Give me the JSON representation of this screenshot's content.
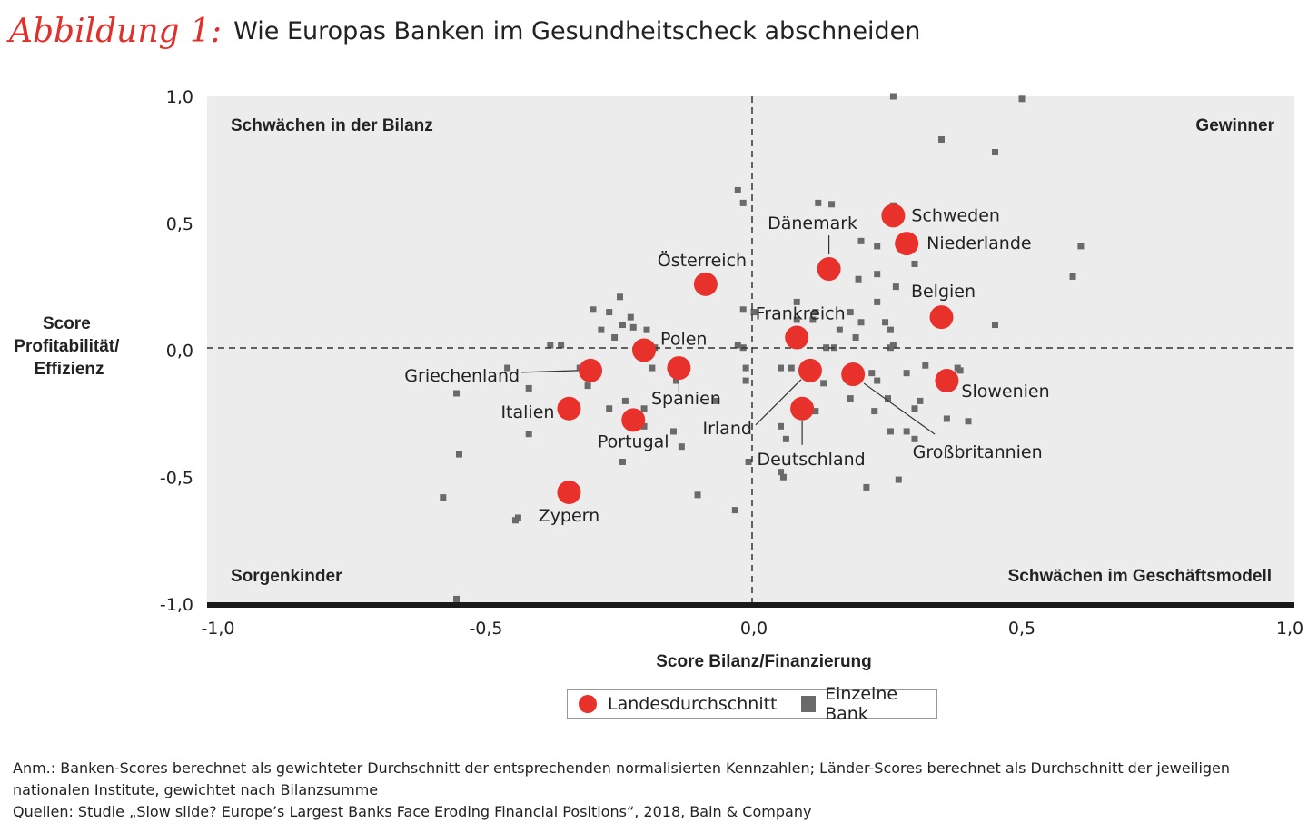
{
  "header": {
    "figure_label": "Abbildung 1:",
    "title": "Wie Europas Banken im Gesundheitscheck abschneiden"
  },
  "colors": {
    "country": "#e8312a",
    "bank": "#6a6a6a",
    "plot_bg": "#ececec",
    "axis_bar": "#1a1a1a",
    "label_accent": "#e0302b"
  },
  "chart_data": {
    "type": "scatter",
    "xlabel": "Score Bilanz/Finanzierung",
    "ylabel": "Score Profitabilität/ Effizienz",
    "xlim": [
      -1.0,
      1.0
    ],
    "ylim": [
      -1.0,
      1.0
    ],
    "x_ticks": [
      {
        "value": -1.0,
        "label": "-1,0"
      },
      {
        "value": -0.5,
        "label": "-0,5"
      },
      {
        "value": 0.0,
        "label": "0,0"
      },
      {
        "value": 0.5,
        "label": "0,5"
      },
      {
        "value": 1.0,
        "label": "1,0"
      }
    ],
    "y_ticks": [
      {
        "value": 1.0,
        "label": "1,0"
      },
      {
        "value": 0.5,
        "label": "0,5"
      },
      {
        "value": 0.0,
        "label": "0,0"
      },
      {
        "value": -0.5,
        "label": "-0,5"
      },
      {
        "value": -1.0,
        "label": "-1,0"
      }
    ],
    "quadrant_labels": {
      "top_left": "Schwächen in der Bilanz",
      "top_right": "Gewinner",
      "bottom_left": "Sorgenkinder",
      "bottom_right": "Schwächen im Geschäftsmodell"
    },
    "legend": {
      "country": "Landesdurchschnitt",
      "bank": "Einzelne Bank",
      "position": "bottom-center"
    },
    "countries": [
      {
        "name": "Schweden",
        "x": 0.26,
        "y": 0.53
      },
      {
        "name": "Niederlande",
        "x": 0.285,
        "y": 0.42
      },
      {
        "name": "Dänemark",
        "x": 0.14,
        "y": 0.32
      },
      {
        "name": "Belgien",
        "x": 0.35,
        "y": 0.13
      },
      {
        "name": "Österreich",
        "x": -0.09,
        "y": 0.26
      },
      {
        "name": "Frankreich",
        "x": 0.08,
        "y": 0.05
      },
      {
        "name": "Polen",
        "x": -0.205,
        "y": 0.0
      },
      {
        "name": "Griechenland",
        "x": -0.305,
        "y": -0.08
      },
      {
        "name": "Spanien",
        "x": -0.14,
        "y": -0.07
      },
      {
        "name": "Irland",
        "x": 0.105,
        "y": -0.08
      },
      {
        "name": "Großbritannien",
        "x": 0.185,
        "y": -0.095
      },
      {
        "name": "Slowenien",
        "x": 0.36,
        "y": -0.12
      },
      {
        "name": "Italien",
        "x": -0.345,
        "y": -0.23
      },
      {
        "name": "Deutschland",
        "x": 0.09,
        "y": -0.23
      },
      {
        "name": "Portugal",
        "x": -0.225,
        "y": -0.275
      },
      {
        "name": "Zypern",
        "x": -0.345,
        "y": -0.56
      }
    ],
    "banks": [
      [
        0.26,
        1.0
      ],
      [
        0.5,
        0.99
      ],
      [
        0.35,
        0.83
      ],
      [
        0.45,
        0.78
      ],
      [
        -0.03,
        0.63
      ],
      [
        -0.02,
        0.58
      ],
      [
        0.12,
        0.58
      ],
      [
        0.145,
        0.575
      ],
      [
        0.26,
        0.57
      ],
      [
        0.2,
        0.43
      ],
      [
        0.23,
        0.41
      ],
      [
        0.61,
        0.41
      ],
      [
        0.3,
        0.34
      ],
      [
        0.23,
        0.3
      ],
      [
        0.595,
        0.29
      ],
      [
        0.195,
        0.28
      ],
      [
        0.265,
        0.25
      ],
      [
        -0.25,
        0.21
      ],
      [
        0.08,
        0.19
      ],
      [
        0.23,
        0.19
      ],
      [
        -0.27,
        0.15
      ],
      [
        -0.3,
        0.16
      ],
      [
        -0.02,
        0.16
      ],
      [
        -0.0,
        0.15
      ],
      [
        0.115,
        0.15
      ],
      [
        0.18,
        0.15
      ],
      [
        0.08,
        0.12
      ],
      [
        0.11,
        0.12
      ],
      [
        0.2,
        0.11
      ],
      [
        0.245,
        0.11
      ],
      [
        -0.23,
        0.13
      ],
      [
        -0.245,
        0.1
      ],
      [
        -0.225,
        0.09
      ],
      [
        0.45,
        0.1
      ],
      [
        -0.285,
        0.08
      ],
      [
        -0.2,
        0.08
      ],
      [
        0.16,
        0.08
      ],
      [
        0.255,
        0.08
      ],
      [
        -0.38,
        0.02
      ],
      [
        -0.36,
        0.02
      ],
      [
        -0.26,
        0.05
      ],
      [
        0.19,
        0.05
      ],
      [
        -0.185,
        0.01
      ],
      [
        -0.03,
        0.02
      ],
      [
        -0.02,
        0.01
      ],
      [
        0.135,
        0.01
      ],
      [
        0.15,
        0.01
      ],
      [
        0.255,
        0.01
      ],
      [
        0.26,
        0.02
      ],
      [
        -0.46,
        -0.07
      ],
      [
        -0.325,
        -0.07
      ],
      [
        -0.19,
        -0.07
      ],
      [
        0.05,
        -0.07
      ],
      [
        0.07,
        -0.07
      ],
      [
        -0.015,
        -0.07
      ],
      [
        0.185,
        -0.09
      ],
      [
        0.22,
        -0.09
      ],
      [
        0.285,
        -0.09
      ],
      [
        0.385,
        -0.08
      ],
      [
        0.32,
        -0.06
      ],
      [
        0.38,
        -0.07
      ],
      [
        -0.015,
        -0.12
      ],
      [
        0.23,
        -0.12
      ],
      [
        0.13,
        -0.13
      ],
      [
        -0.145,
        -0.12
      ],
      [
        -0.42,
        -0.15
      ],
      [
        -0.31,
        -0.14
      ],
      [
        -0.07,
        -0.2
      ],
      [
        0.18,
        -0.19
      ],
      [
        0.25,
        -0.19
      ],
      [
        0.31,
        -0.2
      ],
      [
        -0.555,
        -0.17
      ],
      [
        -0.24,
        -0.2
      ],
      [
        -0.205,
        -0.23
      ],
      [
        -0.27,
        -0.23
      ],
      [
        0.115,
        -0.24
      ],
      [
        0.225,
        -0.24
      ],
      [
        0.3,
        -0.23
      ],
      [
        -0.42,
        -0.33
      ],
      [
        -0.205,
        -0.3
      ],
      [
        0.05,
        -0.3
      ],
      [
        0.36,
        -0.27
      ],
      [
        0.4,
        -0.28
      ],
      [
        0.06,
        -0.35
      ],
      [
        0.255,
        -0.32
      ],
      [
        0.285,
        -0.32
      ],
      [
        -0.15,
        -0.32
      ],
      [
        -0.135,
        -0.38
      ],
      [
        0.3,
        -0.35
      ],
      [
        -0.55,
        -0.41
      ],
      [
        -0.245,
        -0.44
      ],
      [
        -0.01,
        -0.44
      ],
      [
        0.05,
        -0.48
      ],
      [
        0.055,
        -0.5
      ],
      [
        0.21,
        -0.54
      ],
      [
        0.27,
        -0.51
      ],
      [
        -0.58,
        -0.58
      ],
      [
        -0.105,
        -0.57
      ],
      [
        -0.445,
        -0.67
      ],
      [
        -0.44,
        -0.66
      ],
      [
        -0.035,
        -0.63
      ],
      [
        -0.555,
        -0.98
      ]
    ]
  },
  "notes": {
    "anm": "Anm.: Banken-Scores berechnet als gewichteter Durchschnitt der entsprechenden normalisierten Kennzahlen; Länder-Scores berechnet als Durchschnitt der jeweiligen nationalen Institute, gewichtet nach Bilanzsumme",
    "quellen": "Quellen: Studie „Slow slide? Europe’s Largest Banks Face Eroding Financial Positions“, 2018, Bain & Company"
  }
}
